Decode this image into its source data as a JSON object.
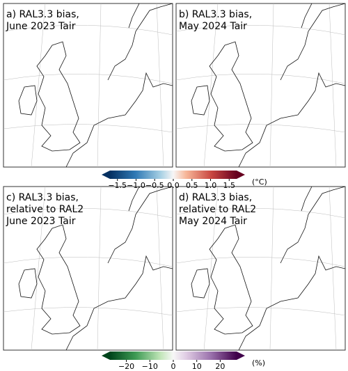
{
  "panels": [
    {
      "lines": [
        "a) RAL3.3 bias,",
        "June 2023 Tair"
      ]
    },
    {
      "lines": [
        "b) RAL3.3 bias,",
        "May 2024 Tair"
      ]
    },
    {
      "lines": [
        "c) RAL3.3 bias,",
        "relative to RAL2",
        "June 2023 Tair"
      ]
    },
    {
      "lines": [
        "d) RAL3.3 bias,",
        "relative to RAL2",
        "May 2024 Tair"
      ]
    }
  ],
  "colorbars": [
    {
      "lim": [
        -1.7,
        1.7
      ],
      "unit": "(°C)",
      "ticks": [
        {
          "value": -1.5,
          "label": "−1.5"
        },
        {
          "value": -1.0,
          "label": "−1.0"
        },
        {
          "value": -0.5,
          "label": "−0.5"
        },
        {
          "value": 0,
          "label": "0.0"
        },
        0.5,
        {
          "value": 1.0,
          "label": "1.0"
        },
        1.5
      ]
    },
    {
      "lim": [
        -27,
        27
      ],
      "unit": "(%)",
      "ticks": [
        {
          "value": -20,
          "label": "−20"
        },
        {
          "value": -10,
          "label": "−10"
        },
        0,
        10,
        20
      ]
    }
  ]
}
